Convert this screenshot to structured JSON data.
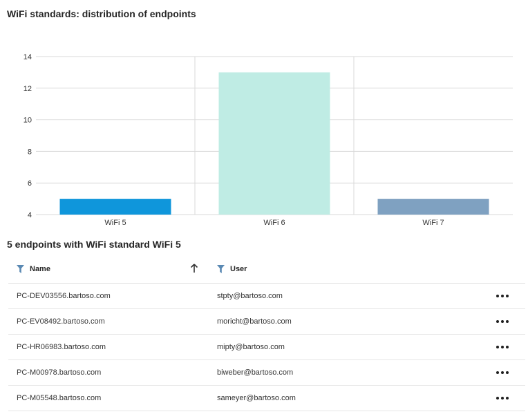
{
  "page": {
    "title": "WiFi standards: distribution of endpoints"
  },
  "chart_data": {
    "type": "bar",
    "title": "WiFi standards: distribution of endpoints",
    "categories": [
      "WiFi 5",
      "WiFi 6",
      "WiFi 7"
    ],
    "values": [
      5,
      13,
      5
    ],
    "colors": [
      "#0f96db",
      "#bfece4",
      "#7fa1c1"
    ],
    "ylim": [
      4,
      14
    ],
    "yticks": [
      4,
      6,
      8,
      10,
      12,
      14
    ],
    "xlabel": "",
    "ylabel": "",
    "grid": true,
    "selected_category": "WiFi 5"
  },
  "table": {
    "title": "5 endpoints with WiFi standard WiFi 5",
    "columns": [
      {
        "label": "Name",
        "icon": "filter-icon",
        "sort": "ascending"
      },
      {
        "label": "User",
        "icon": "filter-icon"
      }
    ],
    "rows": [
      {
        "name": "PC-DEV03556.bartoso.com",
        "user": "stpty@bartoso.com"
      },
      {
        "name": "PC-EV08492.bartoso.com",
        "user": "moricht@bartoso.com"
      },
      {
        "name": "PC-HR06983.bartoso.com",
        "user": "mipty@bartoso.com"
      },
      {
        "name": "PC-M00978.bartoso.com",
        "user": "biweber@bartoso.com"
      },
      {
        "name": "PC-M05548.bartoso.com",
        "user": "sameyer@bartoso.com"
      }
    ],
    "row_action_icon": "more-options-icon"
  },
  "colors": {
    "filter_icon": "#5a89b3",
    "grid": "#d9d9d9"
  }
}
